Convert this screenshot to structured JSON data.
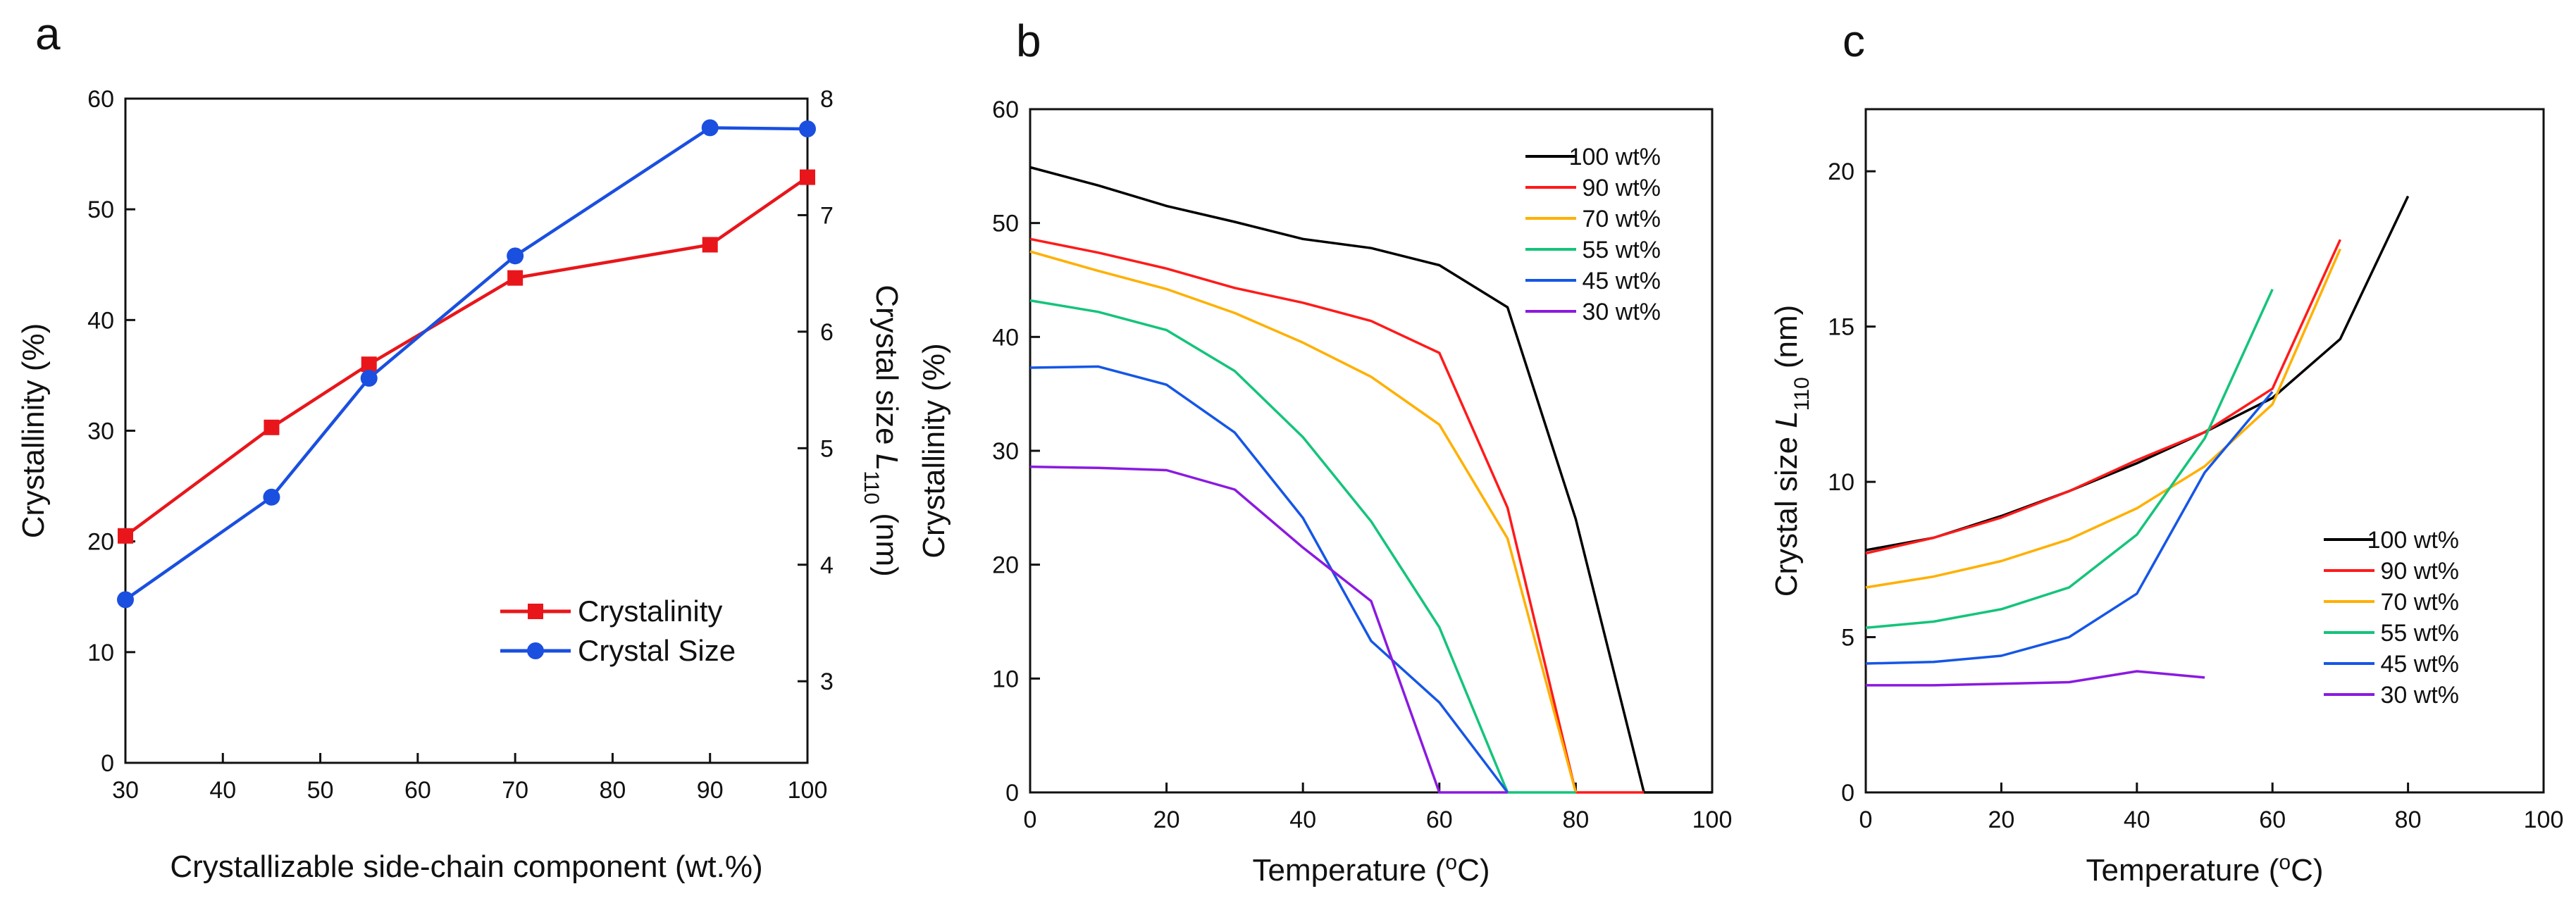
{
  "chart_data": [
    {
      "panel_label": "a",
      "type": "line",
      "xlabel": "Crystallizable side-chain component (wt.%)",
      "ylabel": "Crystallinity (%)",
      "y2label": {
        "pre": "Crystal size ",
        "sym": "L",
        "sub": "110",
        "post": " (nm)"
      },
      "xlim": [
        30,
        100
      ],
      "ylim": [
        0,
        60
      ],
      "y2lim": [
        2.3,
        8.0
      ],
      "xticks": [
        30,
        40,
        50,
        60,
        70,
        80,
        90,
        100
      ],
      "yticks": [
        0,
        10,
        20,
        30,
        40,
        50,
        60
      ],
      "y2ticks": [
        3,
        4,
        5,
        6,
        7,
        8
      ],
      "legend_position": "lower-right",
      "series": [
        {
          "name": "Crystalinity",
          "axis": "left",
          "color": "#e8161b",
          "marker": "square",
          "x": [
            30,
            45,
            55,
            70,
            90,
            100
          ],
          "y": [
            20.5,
            30.3,
            36.0,
            43.8,
            46.8,
            52.9
          ]
        },
        {
          "name": "Crystal Size",
          "axis": "right",
          "color": "#1a4fe0",
          "marker": "circle",
          "x": [
            30,
            45,
            55,
            70,
            90,
            100
          ],
          "y": [
            3.7,
            4.58,
            5.6,
            6.65,
            7.75,
            7.74
          ]
        }
      ]
    },
    {
      "panel_label": "b",
      "type": "line",
      "xlabel": "Temperature  (°C)",
      "xlabel_parts": {
        "pre": "Temperature  (",
        "sup": "o",
        "post": "C)"
      },
      "ylabel": "Crystallinity (%)",
      "xlim": [
        0,
        100
      ],
      "ylim": [
        0,
        60
      ],
      "xticks": [
        0,
        20,
        40,
        60,
        80,
        100
      ],
      "yticks": [
        0,
        10,
        20,
        30,
        40,
        50,
        60
      ],
      "legend_position": "top-right",
      "series": [
        {
          "name": "100 wt%",
          "color": "#000000",
          "x": [
            0,
            10,
            20,
            30,
            40,
            50,
            60,
            70,
            80,
            90,
            100
          ],
          "y": [
            54.9,
            53.3,
            51.5,
            50.1,
            48.6,
            47.8,
            46.3,
            42.6,
            24.0,
            0,
            0
          ]
        },
        {
          "name": "90 wt%",
          "color": "#ff1a1a",
          "x": [
            0,
            10,
            20,
            30,
            40,
            50,
            60,
            70,
            80,
            90
          ],
          "y": [
            48.6,
            47.4,
            46.0,
            44.3,
            43.0,
            41.4,
            38.6,
            25.0,
            0,
            0
          ]
        },
        {
          "name": "70 wt%",
          "color": "#ffb000",
          "x": [
            0,
            10,
            20,
            30,
            40,
            50,
            60,
            70,
            80
          ],
          "y": [
            47.5,
            45.8,
            44.2,
            42.1,
            39.5,
            36.5,
            32.3,
            22.3,
            0
          ]
        },
        {
          "name": "55 wt%",
          "color": "#14c47a",
          "x": [
            0,
            10,
            20,
            30,
            40,
            50,
            60,
            70,
            80
          ],
          "y": [
            43.2,
            42.2,
            40.6,
            37.0,
            31.2,
            23.8,
            14.5,
            0,
            0
          ]
        },
        {
          "name": "45 wt%",
          "color": "#1556e6",
          "x": [
            0,
            10,
            20,
            30,
            40,
            50,
            60,
            70
          ],
          "y": [
            37.3,
            37.4,
            35.8,
            31.6,
            24.1,
            13.3,
            7.9,
            0
          ]
        },
        {
          "name": "30 wt%",
          "color": "#8a1ae0",
          "x": [
            0,
            10,
            20,
            30,
            40,
            50,
            60,
            70
          ],
          "y": [
            28.6,
            28.5,
            28.3,
            26.6,
            21.5,
            16.8,
            0,
            0
          ]
        }
      ]
    },
    {
      "panel_label": "c",
      "type": "line",
      "xlabel": "Temperature  (°C)",
      "xlabel_parts": {
        "pre": "Temperature  (",
        "sup": "o",
        "post": "C)"
      },
      "ylabel": "Crystal size L110 (nm)",
      "ylabel_parts": {
        "pre": "Crystal size ",
        "sym": "L",
        "sub": "110",
        "post": " (nm)"
      },
      "xlim": [
        0,
        100
      ],
      "ylim": [
        0,
        22
      ],
      "xticks": [
        0,
        20,
        40,
        60,
        80,
        100
      ],
      "yticks": [
        0,
        5,
        10,
        15,
        20
      ],
      "legend_position": "lower-right",
      "series": [
        {
          "name": "100 wt%",
          "color": "#000000",
          "x": [
            0,
            10,
            20,
            30,
            40,
            50,
            60,
            70,
            80
          ],
          "y": [
            7.8,
            8.2,
            8.9,
            9.7,
            10.6,
            11.6,
            12.7,
            14.6,
            19.2
          ]
        },
        {
          "name": "90 wt%",
          "color": "#ff1a1a",
          "x": [
            0,
            10,
            20,
            30,
            40,
            50,
            60,
            70
          ],
          "y": [
            7.7,
            8.2,
            8.85,
            9.7,
            10.7,
            11.6,
            13.0,
            17.8
          ]
        },
        {
          "name": "70 wt%",
          "color": "#ffb000",
          "x": [
            0,
            10,
            20,
            30,
            40,
            50,
            60,
            70
          ],
          "y": [
            6.6,
            6.95,
            7.45,
            8.15,
            9.15,
            10.5,
            12.5,
            17.5
          ]
        },
        {
          "name": "55 wt%",
          "color": "#14c47a",
          "x": [
            0,
            10,
            20,
            30,
            40,
            50,
            60
          ],
          "y": [
            5.3,
            5.5,
            5.9,
            6.6,
            8.3,
            11.4,
            16.2
          ]
        },
        {
          "name": "45 wt%",
          "color": "#1556e6",
          "x": [
            0,
            10,
            20,
            30,
            40,
            50,
            60
          ],
          "y": [
            4.15,
            4.2,
            4.4,
            5.0,
            6.4,
            10.3,
            12.9
          ]
        },
        {
          "name": "30 wt%",
          "color": "#8a1ae0",
          "x": [
            0,
            10,
            20,
            30,
            40,
            50
          ],
          "y": [
            3.45,
            3.45,
            3.5,
            3.55,
            3.9,
            3.7
          ]
        }
      ]
    }
  ]
}
